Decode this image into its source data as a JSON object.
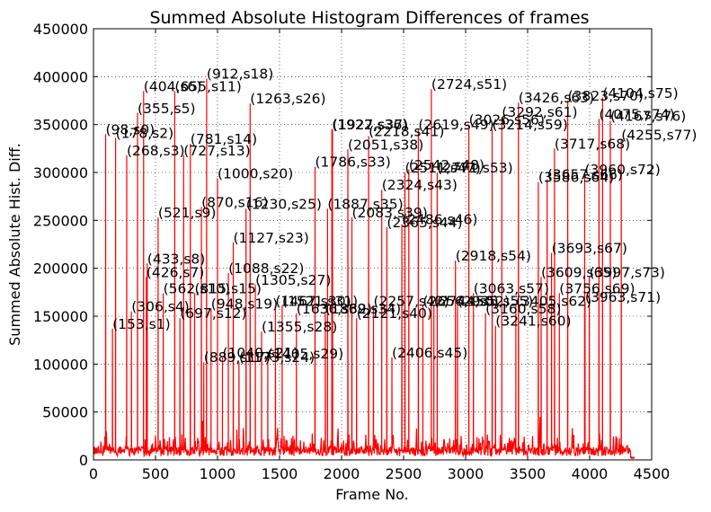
{
  "chart_data": {
    "type": "line",
    "title": "Summed Absolute Histogram Differences of frames",
    "xlabel": "Frame No.",
    "ylabel": "Summed Absolute Hist. Diff.",
    "xlim": [
      0,
      4500
    ],
    "ylim": [
      0,
      450000
    ],
    "x_ticks": [
      0,
      500,
      1000,
      1500,
      2000,
      2500,
      3000,
      3500,
      4000,
      4500
    ],
    "y_ticks": [
      0,
      50000,
      100000,
      150000,
      200000,
      250000,
      300000,
      350000,
      400000,
      450000
    ],
    "grid": true,
    "line_color": "#ff0000",
    "frame_end": 4360,
    "peaks": [
      {
        "label": "(98,s0)",
        "x": 98,
        "y": 340000
      },
      {
        "label": "(153,s1)",
        "x": 153,
        "y": 137000
      },
      {
        "label": "(178,s2)",
        "x": 178,
        "y": 336000
      },
      {
        "label": "(268,s3)",
        "x": 268,
        "y": 318000
      },
      {
        "label": "(306,s4)",
        "x": 306,
        "y": 155000
      },
      {
        "label": "(355,s5)",
        "x": 355,
        "y": 362000
      },
      {
        "label": "(404,s6)",
        "x": 404,
        "y": 385000
      },
      {
        "label": "(426,s7)",
        "x": 426,
        "y": 191000
      },
      {
        "label": "(433,s8)",
        "x": 433,
        "y": 205000
      },
      {
        "label": "(521,s9)",
        "x": 521,
        "y": 253000
      },
      {
        "label": "(562,s10)",
        "x": 562,
        "y": 174000
      },
      {
        "label": "(655,s11)",
        "x": 655,
        "y": 385000
      },
      {
        "label": "(697,s12)",
        "x": 697,
        "y": 148000
      },
      {
        "label": "(727,s13)",
        "x": 727,
        "y": 318000
      },
      {
        "label": "(781,s14)",
        "x": 781,
        "y": 330000
      },
      {
        "label": "(815,s15)",
        "x": 815,
        "y": 174000
      },
      {
        "label": "(870,s16)",
        "x": 870,
        "y": 264000
      },
      {
        "label": "(889,s17)",
        "x": 889,
        "y": 102000
      },
      {
        "label": "(912,s18)",
        "x": 912,
        "y": 398000
      },
      {
        "label": "(948,s19)",
        "x": 948,
        "y": 158000
      },
      {
        "label": "(1000,s20)",
        "x": 1000,
        "y": 294000
      },
      {
        "label": "(1040,s21)",
        "x": 1040,
        "y": 107000
      },
      {
        "label": "(1088,s22)",
        "x": 1088,
        "y": 195000
      },
      {
        "label": "(1127,s23)",
        "x": 1127,
        "y": 227000
      },
      {
        "label": "(1173,s24)",
        "x": 1173,
        "y": 102000
      },
      {
        "label": "(1230,s25)",
        "x": 1230,
        "y": 262000
      },
      {
        "label": "(1263,s26)",
        "x": 1263,
        "y": 372000
      },
      {
        "label": "(1305,s27)",
        "x": 1305,
        "y": 183000
      },
      {
        "label": "(1355,s28)",
        "x": 1355,
        "y": 134000
      },
      {
        "label": "(1405,s29)",
        "x": 1405,
        "y": 106000
      },
      {
        "label": "(1467,s30)",
        "x": 1467,
        "y": 161000
      },
      {
        "label": "(1521,s31)",
        "x": 1521,
        "y": 161000
      },
      {
        "label": "(1636,s32)",
        "x": 1636,
        "y": 153000
      },
      {
        "label": "(1786,s33)",
        "x": 1786,
        "y": 306000
      },
      {
        "label": "(1869,s34)",
        "x": 1869,
        "y": 153000
      },
      {
        "label": "(1887,s35)",
        "x": 1887,
        "y": 262000
      },
      {
        "label": "(1922,s36)",
        "x": 1922,
        "y": 345000
      },
      {
        "label": "(1927,s37)",
        "x": 1927,
        "y": 345000
      },
      {
        "label": "(2051,s38)",
        "x": 2051,
        "y": 324000
      },
      {
        "label": "(2083,s39)",
        "x": 2083,
        "y": 253000
      },
      {
        "label": "(2121,s40)",
        "x": 2121,
        "y": 148000
      },
      {
        "label": "(2218,s41)",
        "x": 2218,
        "y": 338000
      },
      {
        "label": "(2257,s42)",
        "x": 2257,
        "y": 161000
      },
      {
        "label": "(2324,s43)",
        "x": 2324,
        "y": 282000
      },
      {
        "label": "(2365,s44)",
        "x": 2365,
        "y": 243000
      },
      {
        "label": "(2406,s45)",
        "x": 2406,
        "y": 107000
      },
      {
        "label": "(2486,s46)",
        "x": 2486,
        "y": 246000
      },
      {
        "label": "(2511,s47)",
        "x": 2511,
        "y": 300000
      },
      {
        "label": "(2542,s48)",
        "x": 2542,
        "y": 303000
      },
      {
        "label": "(2619,s49)",
        "x": 2619,
        "y": 345000
      },
      {
        "label": "(2656,s50)",
        "x": 2656,
        "y": 161000
      },
      {
        "label": "(2724,s51)",
        "x": 2724,
        "y": 387000
      },
      {
        "label": "(2744,s52)",
        "x": 2744,
        "y": 161000
      },
      {
        "label": "(2771,s53)",
        "x": 2771,
        "y": 300000
      },
      {
        "label": "(2918,s54)",
        "x": 2918,
        "y": 208000
      },
      {
        "label": "(2935,s55)",
        "x": 2935,
        "y": 161000
      },
      {
        "label": "(3026,s56)",
        "x": 3026,
        "y": 350000
      },
      {
        "label": "(3063,s57)",
        "x": 3063,
        "y": 174000
      },
      {
        "label": "(3160,s58)",
        "x": 3160,
        "y": 153000
      },
      {
        "label": "(3214,s59)",
        "x": 3214,
        "y": 345000
      },
      {
        "label": "(3241,s60)",
        "x": 3241,
        "y": 140000
      },
      {
        "label": "(3292,s61)",
        "x": 3292,
        "y": 358000
      },
      {
        "label": "(3405,s62)",
        "x": 3405,
        "y": 161000
      },
      {
        "label": "(3426,s63)",
        "x": 3426,
        "y": 373000
      },
      {
        "label": "(3586,s64)",
        "x": 3586,
        "y": 290000
      },
      {
        "label": "(3609,s65)",
        "x": 3609,
        "y": 191000
      },
      {
        "label": "(3657,s66)",
        "x": 3657,
        "y": 293000
      },
      {
        "label": "(3693,s67)",
        "x": 3693,
        "y": 216000
      },
      {
        "label": "(3717,s68)",
        "x": 3717,
        "y": 325000
      },
      {
        "label": "(3756,s69)",
        "x": 3756,
        "y": 174000
      },
      {
        "label": "(3823,s70)",
        "x": 3823,
        "y": 375000
      },
      {
        "label": "(3963,s71)",
        "x": 3963,
        "y": 165000
      },
      {
        "label": "(3960,s72)",
        "x": 3960,
        "y": 298000
      },
      {
        "label": "(3997,s73)",
        "x": 3997,
        "y": 191000
      },
      {
        "label": "(4075,s74)",
        "x": 4075,
        "y": 356000
      },
      {
        "label": "(4104,s75)",
        "x": 4104,
        "y": 378000
      },
      {
        "label": "(4167,s76)",
        "x": 4167,
        "y": 354000
      },
      {
        "label": "(4255,s77)",
        "x": 4255,
        "y": 334000
      }
    ]
  }
}
